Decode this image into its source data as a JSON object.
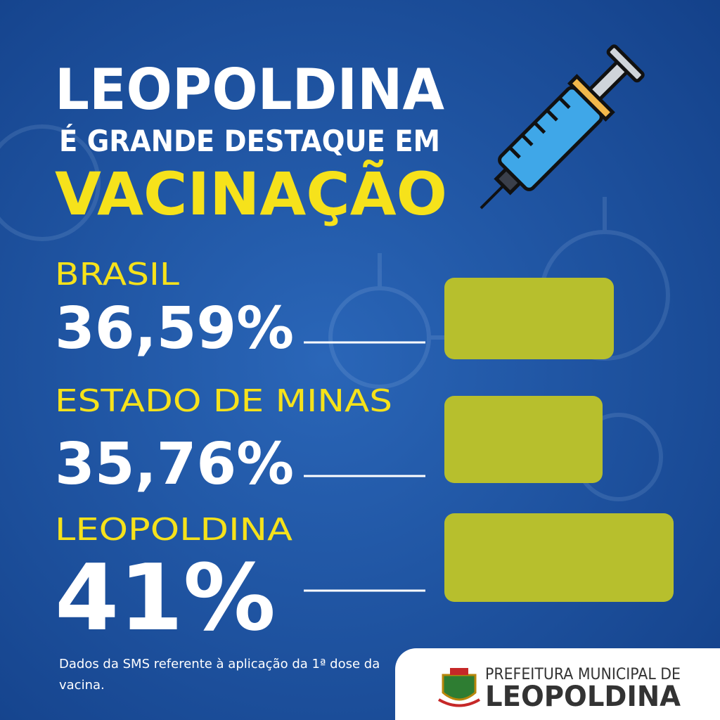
{
  "chart_data": {
    "type": "bar",
    "title": "LEOPOLDINA",
    "subtitle": "É GRANDE DESTAQUE EM",
    "highlight": "VACINAÇÃO",
    "categories": [
      "BRASIL",
      "ESTADO DE MINAS",
      "LEOPOLDINA"
    ],
    "values": [
      36.59,
      35.76,
      41
    ],
    "value_labels": [
      "36,59%",
      "35,76%",
      "41%"
    ],
    "color": "#b7bf2d",
    "note": "Dados da SMS referente à aplicação da 1ª dose da vacina.",
    "footer": {
      "line1": "PREFEITURA MUNICIPAL DE",
      "line2": "LEOPOLDINA"
    }
  }
}
